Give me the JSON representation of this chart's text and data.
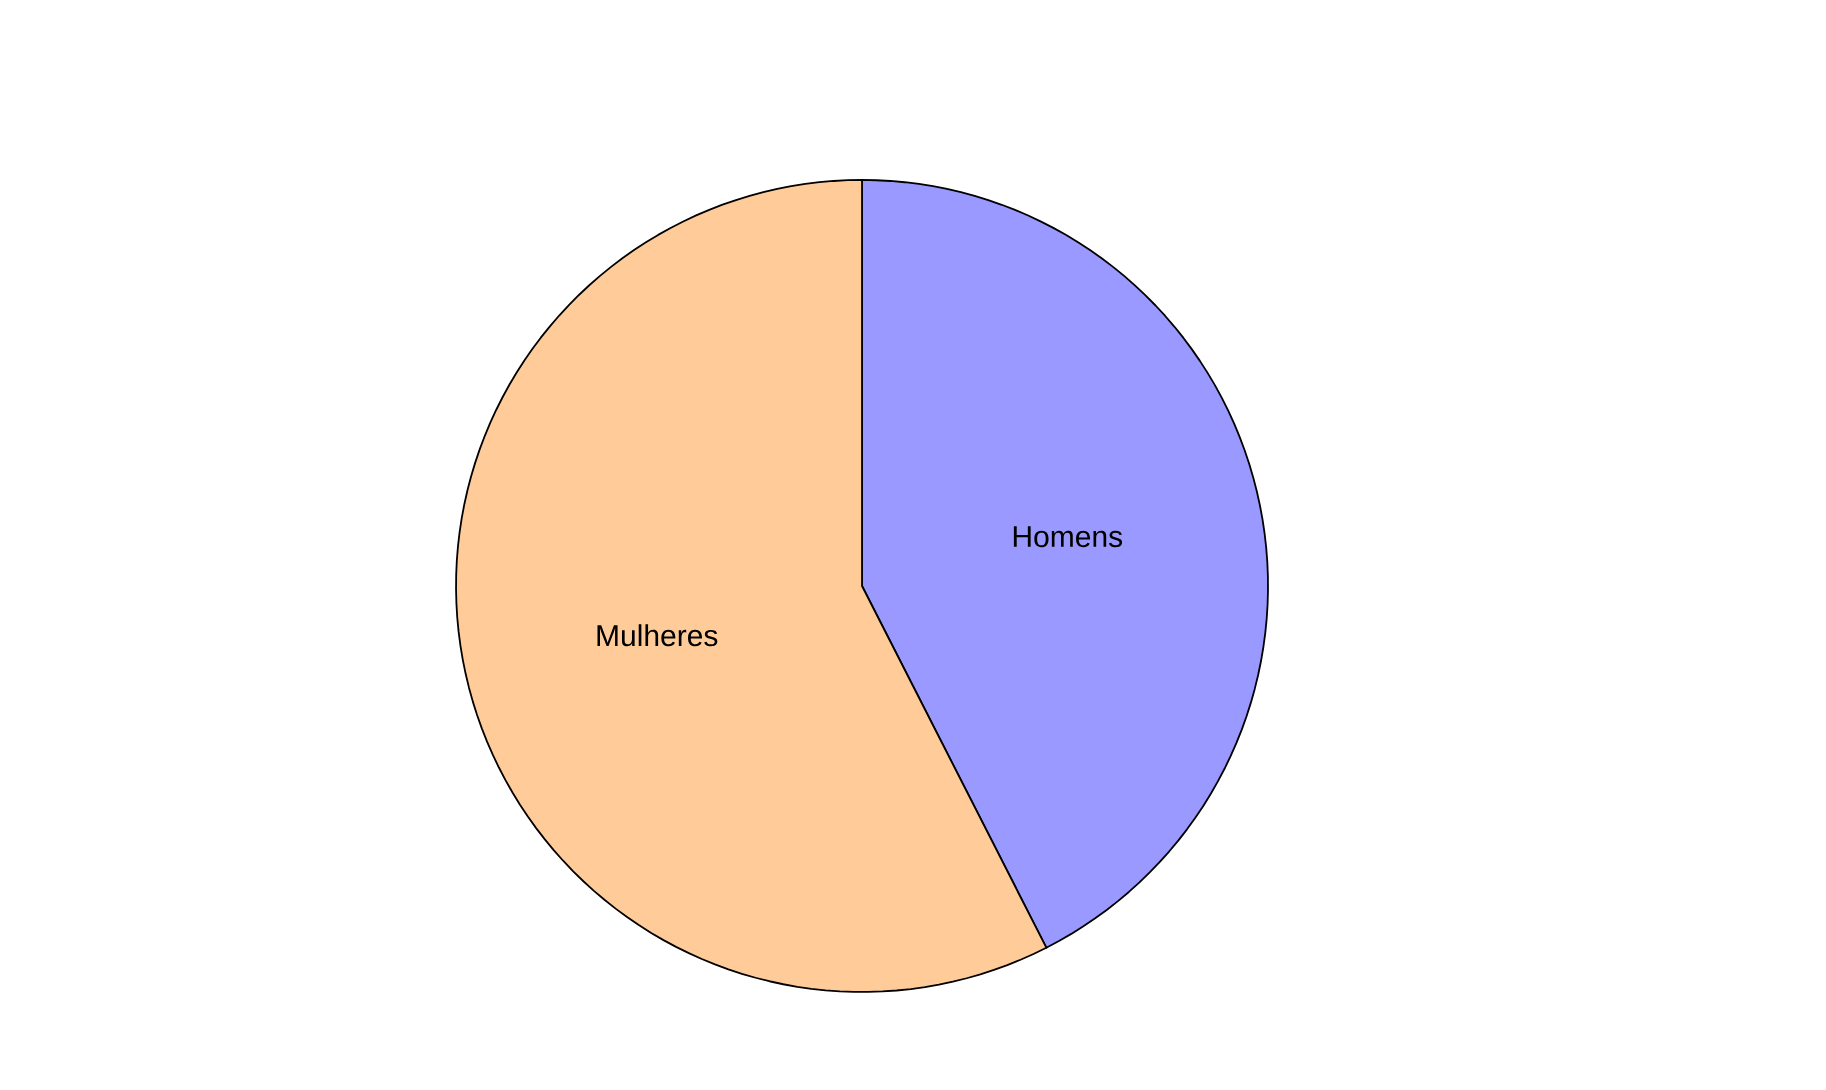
{
  "chart_data": {
    "type": "pie",
    "categories": [
      "Homens",
      "Mulheres"
    ],
    "values": [
      42.5,
      57.5
    ],
    "colors": [
      "#9999ff",
      "#ffcc99"
    ]
  }
}
